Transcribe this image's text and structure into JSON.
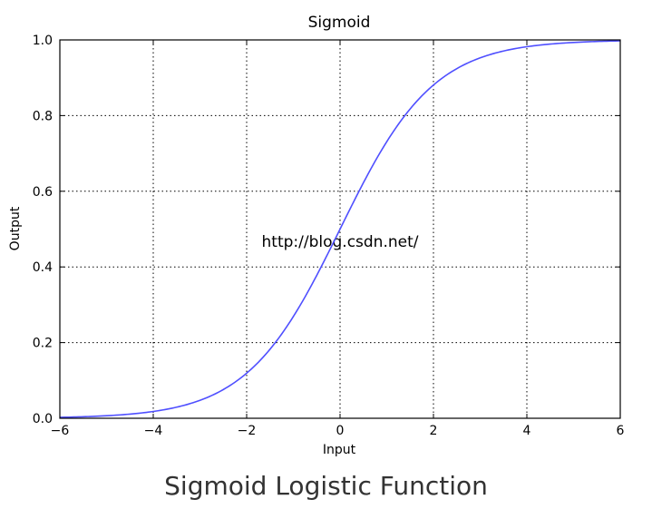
{
  "chart_data": {
    "type": "line",
    "title": "Sigmoid",
    "xlabel": "Input",
    "ylabel": "Output",
    "xlim": [
      -6,
      6
    ],
    "ylim": [
      0.0,
      1.0
    ],
    "xticks": [
      -6,
      -4,
      -2,
      0,
      2,
      4,
      6
    ],
    "xtick_labels": [
      "−6",
      "−4",
      "−2",
      "0",
      "2",
      "4",
      "6"
    ],
    "yticks": [
      0.0,
      0.2,
      0.4,
      0.6,
      0.8,
      1.0
    ],
    "ytick_labels": [
      "0.0",
      "0.2",
      "0.4",
      "0.6",
      "0.8",
      "1.0"
    ],
    "grid": true,
    "series": [
      {
        "function": "1/(1+exp(-x))",
        "color": "#4f4fff",
        "x": [
          -6,
          -5,
          -4,
          -3,
          -2,
          -1,
          0,
          1,
          2,
          3,
          4,
          5,
          6
        ],
        "y": [
          0.0025,
          0.0067,
          0.018,
          0.047,
          0.119,
          0.269,
          0.5,
          0.731,
          0.881,
          0.953,
          0.982,
          0.9933,
          0.9975
        ]
      }
    ]
  },
  "watermark": "http://blog.csdn.net/",
  "caption": "Sigmoid Logistic Function"
}
